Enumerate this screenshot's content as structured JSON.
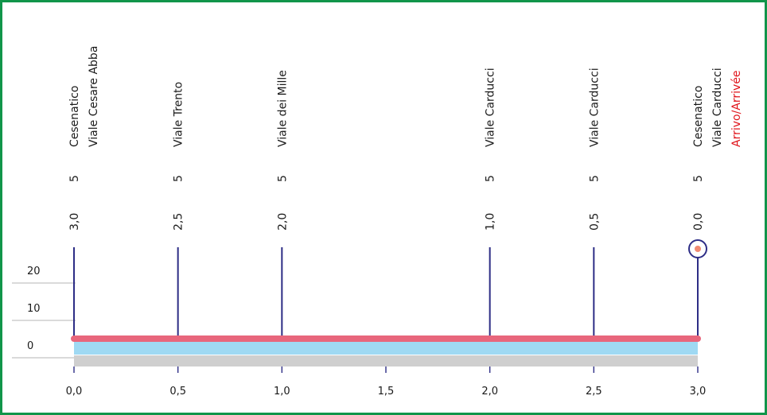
{
  "colors": {
    "frame": "#11954a",
    "marker_line": "#2d2d86",
    "profile_line": "#e8667c",
    "profile_fill": "#9fd9f3",
    "ground": "#cfcfcf",
    "finish_text": "#e0141b",
    "finish_dot": "#f08a72"
  },
  "altitude_scale": {
    "ticks": [
      "20",
      "10",
      "0"
    ],
    "values": [
      20,
      10,
      0
    ]
  },
  "distance_axis": {
    "ticks": [
      "0,0",
      "0,5",
      "1,0",
      "1,5",
      "2,0",
      "2,5",
      "3,0"
    ],
    "values": [
      0,
      0.5,
      1.0,
      1.5,
      2.0,
      2.5,
      3.0
    ]
  },
  "waypoints": [
    {
      "km": 0.0,
      "names": [
        "Cesenatico",
        "Viale Cesare Abba"
      ],
      "finish_text": "",
      "altitude": "5",
      "remaining": "3,0"
    },
    {
      "km": 0.5,
      "names": [
        "Viale Trento"
      ],
      "finish_text": "",
      "altitude": "5",
      "remaining": "2,5"
    },
    {
      "km": 1.0,
      "names": [
        "Viale dei Mille"
      ],
      "finish_text": "",
      "altitude": "5",
      "remaining": "2,0"
    },
    {
      "km": 2.0,
      "names": [
        "Viale Carducci"
      ],
      "finish_text": "",
      "altitude": "5",
      "remaining": "1,0"
    },
    {
      "km": 2.5,
      "names": [
        "Viale Carducci"
      ],
      "finish_text": "",
      "altitude": "5",
      "remaining": "0,5"
    },
    {
      "km": 3.0,
      "names": [
        "Cesenatico",
        "Viale Carducci"
      ],
      "finish_text": "Arrivo/Arrivée",
      "altitude": "5",
      "remaining": "0,0",
      "is_finish": true
    }
  ],
  "profile": {
    "distance_km": [
      0,
      3.0
    ],
    "altitude_m": [
      5,
      5
    ]
  }
}
